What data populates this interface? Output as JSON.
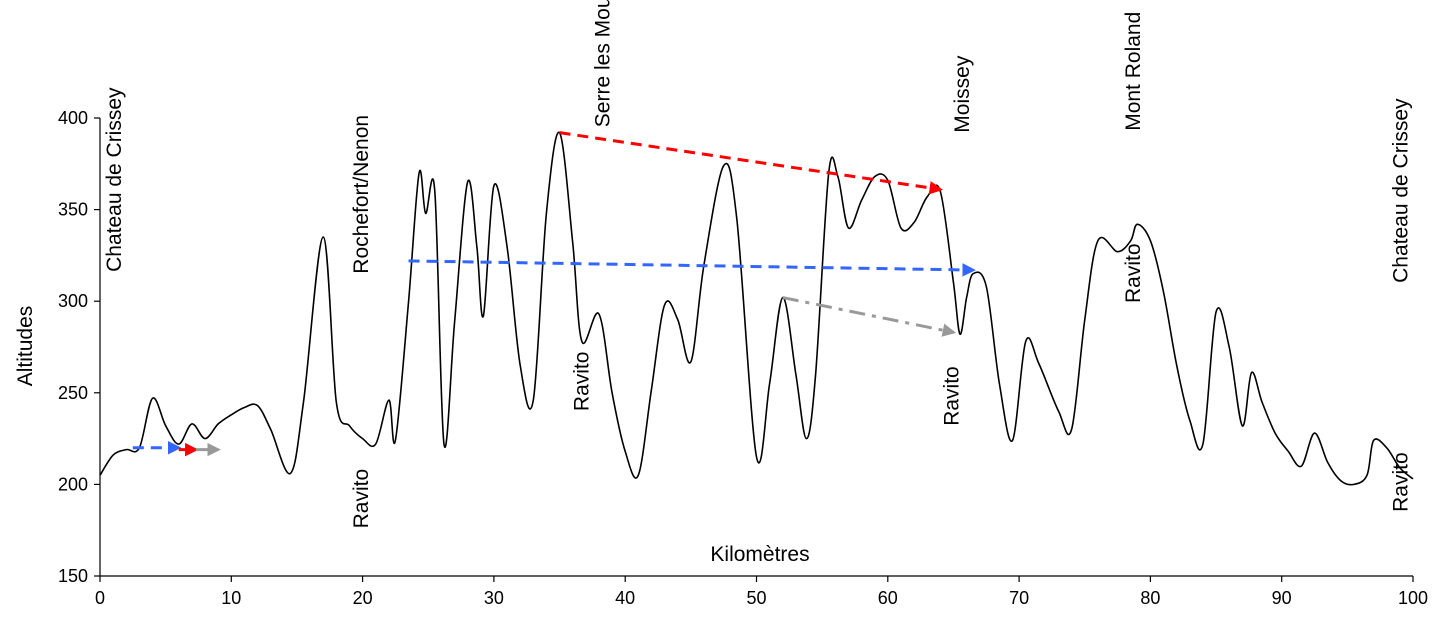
{
  "chart_data": {
    "type": "line",
    "title": "",
    "xlabel": "Kilomètres",
    "ylabel": "Altitudes",
    "xlim": [
      0,
      100
    ],
    "ylim": [
      150,
      400
    ],
    "xticks": [
      0,
      10,
      20,
      30,
      40,
      50,
      60,
      70,
      80,
      90,
      100
    ],
    "yticks": [
      150,
      200,
      250,
      300,
      350,
      400
    ],
    "grid": false,
    "series": [
      {
        "type": "line",
        "color": "#000000",
        "points": [
          [
            0,
            205
          ],
          [
            1,
            216
          ],
          [
            2,
            219
          ],
          [
            3,
            220
          ],
          [
            4,
            247
          ],
          [
            5,
            232
          ],
          [
            6,
            222
          ],
          [
            7,
            233
          ],
          [
            8,
            225
          ],
          [
            9,
            233
          ],
          [
            10,
            238
          ],
          [
            11,
            242
          ],
          [
            12,
            243
          ],
          [
            13,
            230
          ],
          [
            14.5,
            206
          ],
          [
            15.5,
            245
          ],
          [
            17,
            335
          ],
          [
            18,
            245
          ],
          [
            19,
            232
          ],
          [
            20,
            225
          ],
          [
            21,
            222
          ],
          [
            22,
            246
          ],
          [
            22.5,
            224
          ],
          [
            23.5,
            300
          ],
          [
            24.3,
            370
          ],
          [
            24.8,
            348
          ],
          [
            25.5,
            360
          ],
          [
            26.2,
            222
          ],
          [
            27,
            288
          ],
          [
            28,
            365
          ],
          [
            28.7,
            330
          ],
          [
            29.2,
            292
          ],
          [
            30,
            363
          ],
          [
            31,
            330
          ],
          [
            32,
            265
          ],
          [
            33,
            246
          ],
          [
            34,
            348
          ],
          [
            35,
            392
          ],
          [
            36,
            332
          ],
          [
            36.7,
            278
          ],
          [
            38,
            293
          ],
          [
            39,
            250
          ],
          [
            40,
            218
          ],
          [
            41,
            205
          ],
          [
            42,
            252
          ],
          [
            43,
            298
          ],
          [
            44,
            290
          ],
          [
            45,
            267
          ],
          [
            46,
            320
          ],
          [
            47.5,
            374
          ],
          [
            48.5,
            345
          ],
          [
            50,
            215
          ],
          [
            51,
            255
          ],
          [
            52,
            302
          ],
          [
            53,
            260
          ],
          [
            53.8,
            225
          ],
          [
            54.5,
            260
          ],
          [
            55.5,
            370
          ],
          [
            56.2,
            368
          ],
          [
            57,
            340
          ],
          [
            58,
            355
          ],
          [
            59,
            368
          ],
          [
            60,
            366
          ],
          [
            61,
            340
          ],
          [
            62,
            343
          ],
          [
            63,
            357
          ],
          [
            64,
            360
          ],
          [
            65,
            310
          ],
          [
            65.5,
            282
          ],
          [
            66,
            302
          ],
          [
            66.5,
            315
          ],
          [
            67.5,
            308
          ],
          [
            68.5,
            255
          ],
          [
            69.5,
            224
          ],
          [
            70.5,
            278
          ],
          [
            71.5,
            266
          ],
          [
            73,
            240
          ],
          [
            74,
            230
          ],
          [
            75,
            290
          ],
          [
            76,
            333
          ],
          [
            77.5,
            327
          ],
          [
            78.5,
            333
          ],
          [
            79,
            342
          ],
          [
            80,
            333
          ],
          [
            81,
            305
          ],
          [
            82,
            265
          ],
          [
            83,
            235
          ],
          [
            84,
            222
          ],
          [
            85,
            294
          ],
          [
            86,
            275
          ],
          [
            87,
            232
          ],
          [
            87.7,
            261
          ],
          [
            88.5,
            245
          ],
          [
            89.5,
            228
          ],
          [
            90.5,
            218
          ],
          [
            91.5,
            210
          ],
          [
            92.5,
            228
          ],
          [
            93.5,
            212
          ],
          [
            94.5,
            202
          ],
          [
            95.5,
            200
          ],
          [
            96.5,
            205
          ],
          [
            97,
            224
          ],
          [
            98,
            220
          ],
          [
            99,
            209
          ],
          [
            100,
            203
          ]
        ]
      }
    ],
    "arrows": [
      {
        "color": "#ff0000",
        "dash": "dash",
        "from": [
          35,
          392
        ],
        "to": [
          64,
          361
        ]
      },
      {
        "color": "#3366ff",
        "dash": "dash",
        "from": [
          23.5,
          322
        ],
        "to": [
          66.5,
          317
        ]
      },
      {
        "color": "#999999",
        "dash": "dashdot",
        "from": [
          52,
          302
        ],
        "to": [
          65,
          283
        ]
      },
      {
        "color": "#3366ff",
        "dash": "dash",
        "from": [
          2.5,
          220
        ],
        "to": [
          6,
          220
        ]
      },
      {
        "color": "#ff0000",
        "dash": "solid",
        "from": [
          6,
          219
        ],
        "to": [
          7.3,
          219
        ]
      },
      {
        "color": "#999999",
        "dash": "solid",
        "from": [
          7.3,
          219
        ],
        "to": [
          9,
          219
        ]
      }
    ],
    "annotations": [
      {
        "text": "Chateau de Crissey",
        "x": 1.6,
        "y": 316,
        "rotate": -90
      },
      {
        "text": "Rochefort/Nenon",
        "x": 20.4,
        "y": 315,
        "rotate": -90
      },
      {
        "text": "Ravito",
        "x": 20.4,
        "y": 176,
        "rotate": -90
      },
      {
        "text": "Serre les Moulières",
        "x": 38.8,
        "y": 395,
        "rotate": -90
      },
      {
        "text": "Ravito",
        "x": 37.2,
        "y": 240,
        "rotate": -90
      },
      {
        "text": "Moissey",
        "x": 66.2,
        "y": 392,
        "rotate": -90
      },
      {
        "text": "Ravito",
        "x": 65.4,
        "y": 232,
        "rotate": -90
      },
      {
        "text": "Mont Roland",
        "x": 79.2,
        "y": 393,
        "rotate": -90
      },
      {
        "text": "Ravito",
        "x": 79.2,
        "y": 299,
        "rotate": -90
      },
      {
        "text": "Chateau de Crissey",
        "x": 99.6,
        "y": 310,
        "rotate": -90
      },
      {
        "text": "Ravito",
        "x": 99.6,
        "y": 185,
        "rotate": -90
      }
    ]
  }
}
